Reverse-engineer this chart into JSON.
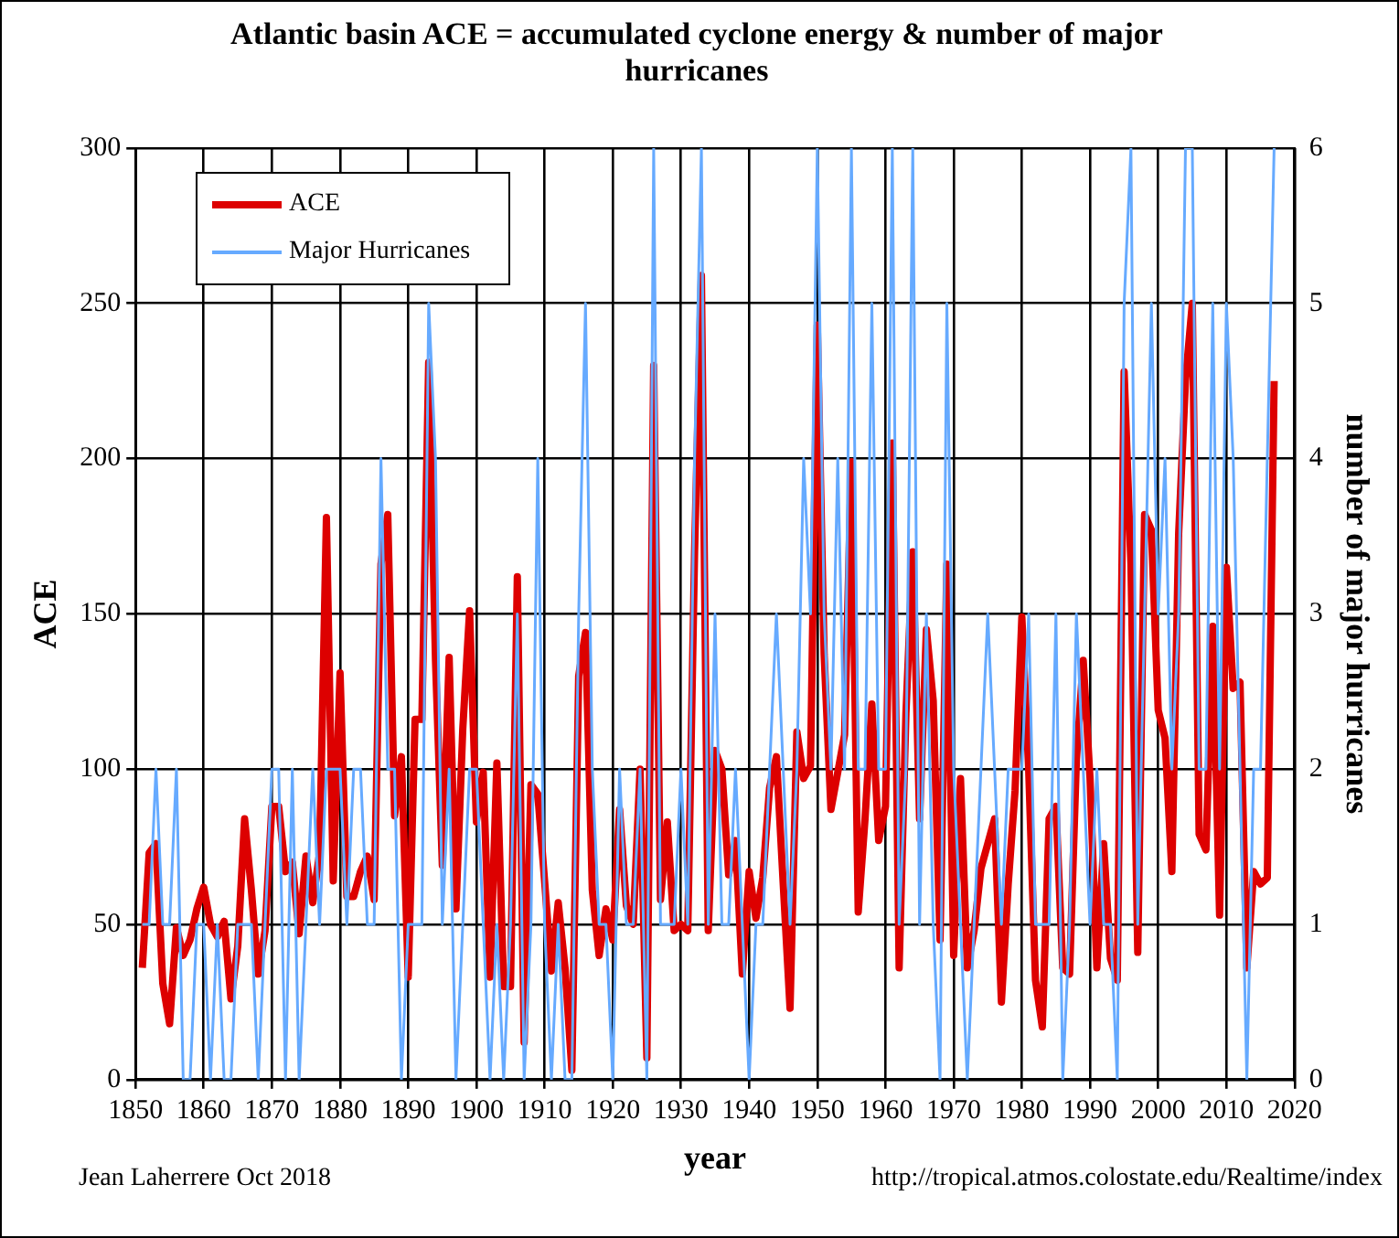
{
  "chart_data": {
    "type": "line",
    "title": "Atlantic basin ACE = accumulated cyclone energy & number of major hurricanes",
    "xlabel": "year",
    "ylabel": "ACE",
    "y2label": "number of major hurricanes",
    "annotations": [
      "Jean Laherrere Oct 2018",
      "http://tropical.atmos.colostate.edu/Realtime/index"
    ],
    "x": [
      1851,
      1852,
      1853,
      1854,
      1855,
      1856,
      1857,
      1858,
      1859,
      1860,
      1861,
      1862,
      1863,
      1864,
      1865,
      1866,
      1867,
      1868,
      1869,
      1870,
      1871,
      1872,
      1873,
      1874,
      1875,
      1876,
      1877,
      1878,
      1879,
      1880,
      1881,
      1882,
      1883,
      1884,
      1885,
      1886,
      1887,
      1888,
      1889,
      1890,
      1891,
      1892,
      1893,
      1894,
      1895,
      1896,
      1897,
      1898,
      1899,
      1900,
      1901,
      1902,
      1903,
      1904,
      1905,
      1906,
      1907,
      1908,
      1909,
      1910,
      1911,
      1912,
      1913,
      1914,
      1915,
      1916,
      1917,
      1918,
      1919,
      1920,
      1921,
      1922,
      1923,
      1924,
      1925,
      1926,
      1927,
      1928,
      1929,
      1930,
      1931,
      1932,
      1933,
      1934,
      1935,
      1936,
      1937,
      1938,
      1939,
      1940,
      1941,
      1942,
      1943,
      1944,
      1945,
      1946,
      1947,
      1948,
      1949,
      1950,
      1951,
      1952,
      1953,
      1954,
      1955,
      1956,
      1957,
      1958,
      1959,
      1960,
      1961,
      1962,
      1963,
      1964,
      1965,
      1966,
      1967,
      1968,
      1969,
      1970,
      1971,
      1972,
      1973,
      1974,
      1975,
      1976,
      1977,
      1978,
      1979,
      1980,
      1981,
      1982,
      1983,
      1984,
      1985,
      1986,
      1987,
      1988,
      1989,
      1990,
      1991,
      1992,
      1993,
      1994,
      1995,
      1996,
      1997,
      1998,
      1999,
      2000,
      2001,
      2002,
      2003,
      2004,
      2005,
      2006,
      2007,
      2008,
      2009,
      2010,
      2011,
      2012,
      2013,
      2014,
      2015,
      2016,
      2017
    ],
    "series": [
      {
        "name": "ACE",
        "color": "#dd0000",
        "values": [
          36,
          73,
          76,
          31,
          18,
          49,
          40,
          45,
          55,
          62,
          50,
          46,
          51,
          26,
          43,
          84,
          61,
          34,
          48,
          88,
          88,
          67,
          70,
          47,
          72,
          57,
          73,
          181,
          64,
          131,
          59,
          59,
          67,
          72,
          58,
          166,
          182,
          85,
          104,
          33,
          116,
          116,
          231,
          135,
          69,
          136,
          55,
          113,
          151,
          83,
          99,
          33,
          102,
          30,
          30,
          162,
          12,
          95,
          92,
          64,
          35,
          57,
          36,
          3,
          130,
          144,
          61,
          40,
          55,
          45,
          87,
          56,
          50,
          100,
          7,
          230,
          58,
          83,
          48,
          50,
          48,
          170,
          259,
          48,
          106,
          100,
          66,
          77,
          34,
          67,
          52,
          65,
          94,
          104,
          63,
          23,
          112,
          97,
          101,
          243,
          137,
          87,
          99,
          111,
          199,
          54,
          84,
          121,
          77,
          88,
          205,
          36,
          118,
          170,
          84,
          145,
          122,
          45,
          166,
          40,
          97,
          36,
          48,
          68,
          76,
          84,
          25,
          63,
          93,
          149,
          100,
          32,
          17,
          84,
          88,
          36,
          34,
          103,
          135,
          97,
          36,
          76,
          39,
          32,
          228,
          166,
          41,
          182,
          177,
          119,
          110,
          67,
          176,
          225,
          250,
          79,
          74,
          146,
          53,
          165,
          126,
          128,
          36,
          67,
          63,
          65,
          225
        ]
      },
      {
        "name": "Major Hurricanes",
        "color": "#66aaff",
        "axis": "y2",
        "values": [
          1,
          1,
          2,
          1,
          1,
          2,
          0,
          0,
          1,
          1,
          0,
          1,
          0,
          0,
          1,
          1,
          1,
          0,
          1,
          2,
          2,
          0,
          2,
          0,
          1,
          2,
          1,
          2,
          2,
          2,
          1,
          2,
          2,
          1,
          1,
          4,
          2,
          2,
          0,
          1,
          1,
          1,
          5,
          4,
          1,
          2,
          0,
          1,
          2,
          2,
          1,
          0,
          1,
          0,
          1,
          3,
          0,
          1,
          4,
          1,
          0,
          1,
          0,
          0,
          3,
          5,
          2,
          1,
          1,
          0,
          2,
          1,
          1,
          2,
          0,
          6,
          1,
          1,
          1,
          2,
          1,
          4,
          6,
          1,
          3,
          1,
          1,
          2,
          1,
          0,
          1,
          1,
          2,
          3,
          2,
          1,
          2,
          4,
          3,
          6,
          3,
          2,
          4,
          2,
          6,
          2,
          2,
          5,
          2,
          2,
          6,
          1,
          2,
          6,
          1,
          3,
          1,
          0,
          5,
          2,
          1,
          0,
          1,
          2,
          3,
          2,
          1,
          2,
          2,
          2,
          3,
          1,
          1,
          1,
          3,
          0,
          1,
          3,
          2,
          1,
          2,
          1,
          1,
          0,
          5,
          6,
          1,
          3,
          5,
          3,
          4,
          2,
          3,
          6,
          6,
          2,
          2,
          5,
          2,
          5,
          4,
          2,
          0,
          2,
          2,
          4,
          6
        ]
      }
    ],
    "xlim": [
      1850,
      2020
    ],
    "xticks": [
      1850,
      1860,
      1870,
      1880,
      1890,
      1900,
      1910,
      1920,
      1930,
      1940,
      1950,
      1960,
      1970,
      1980,
      1990,
      2000,
      2010,
      2020
    ],
    "ylim": [
      0,
      300
    ],
    "yticks": [
      0,
      50,
      100,
      150,
      200,
      250,
      300
    ],
    "y2lim": [
      0,
      6
    ],
    "y2ticks": [
      0,
      1,
      2,
      3,
      4,
      5,
      6
    ],
    "grid": true,
    "legend": "top left",
    "marker": "none",
    "line_style": "solid"
  }
}
